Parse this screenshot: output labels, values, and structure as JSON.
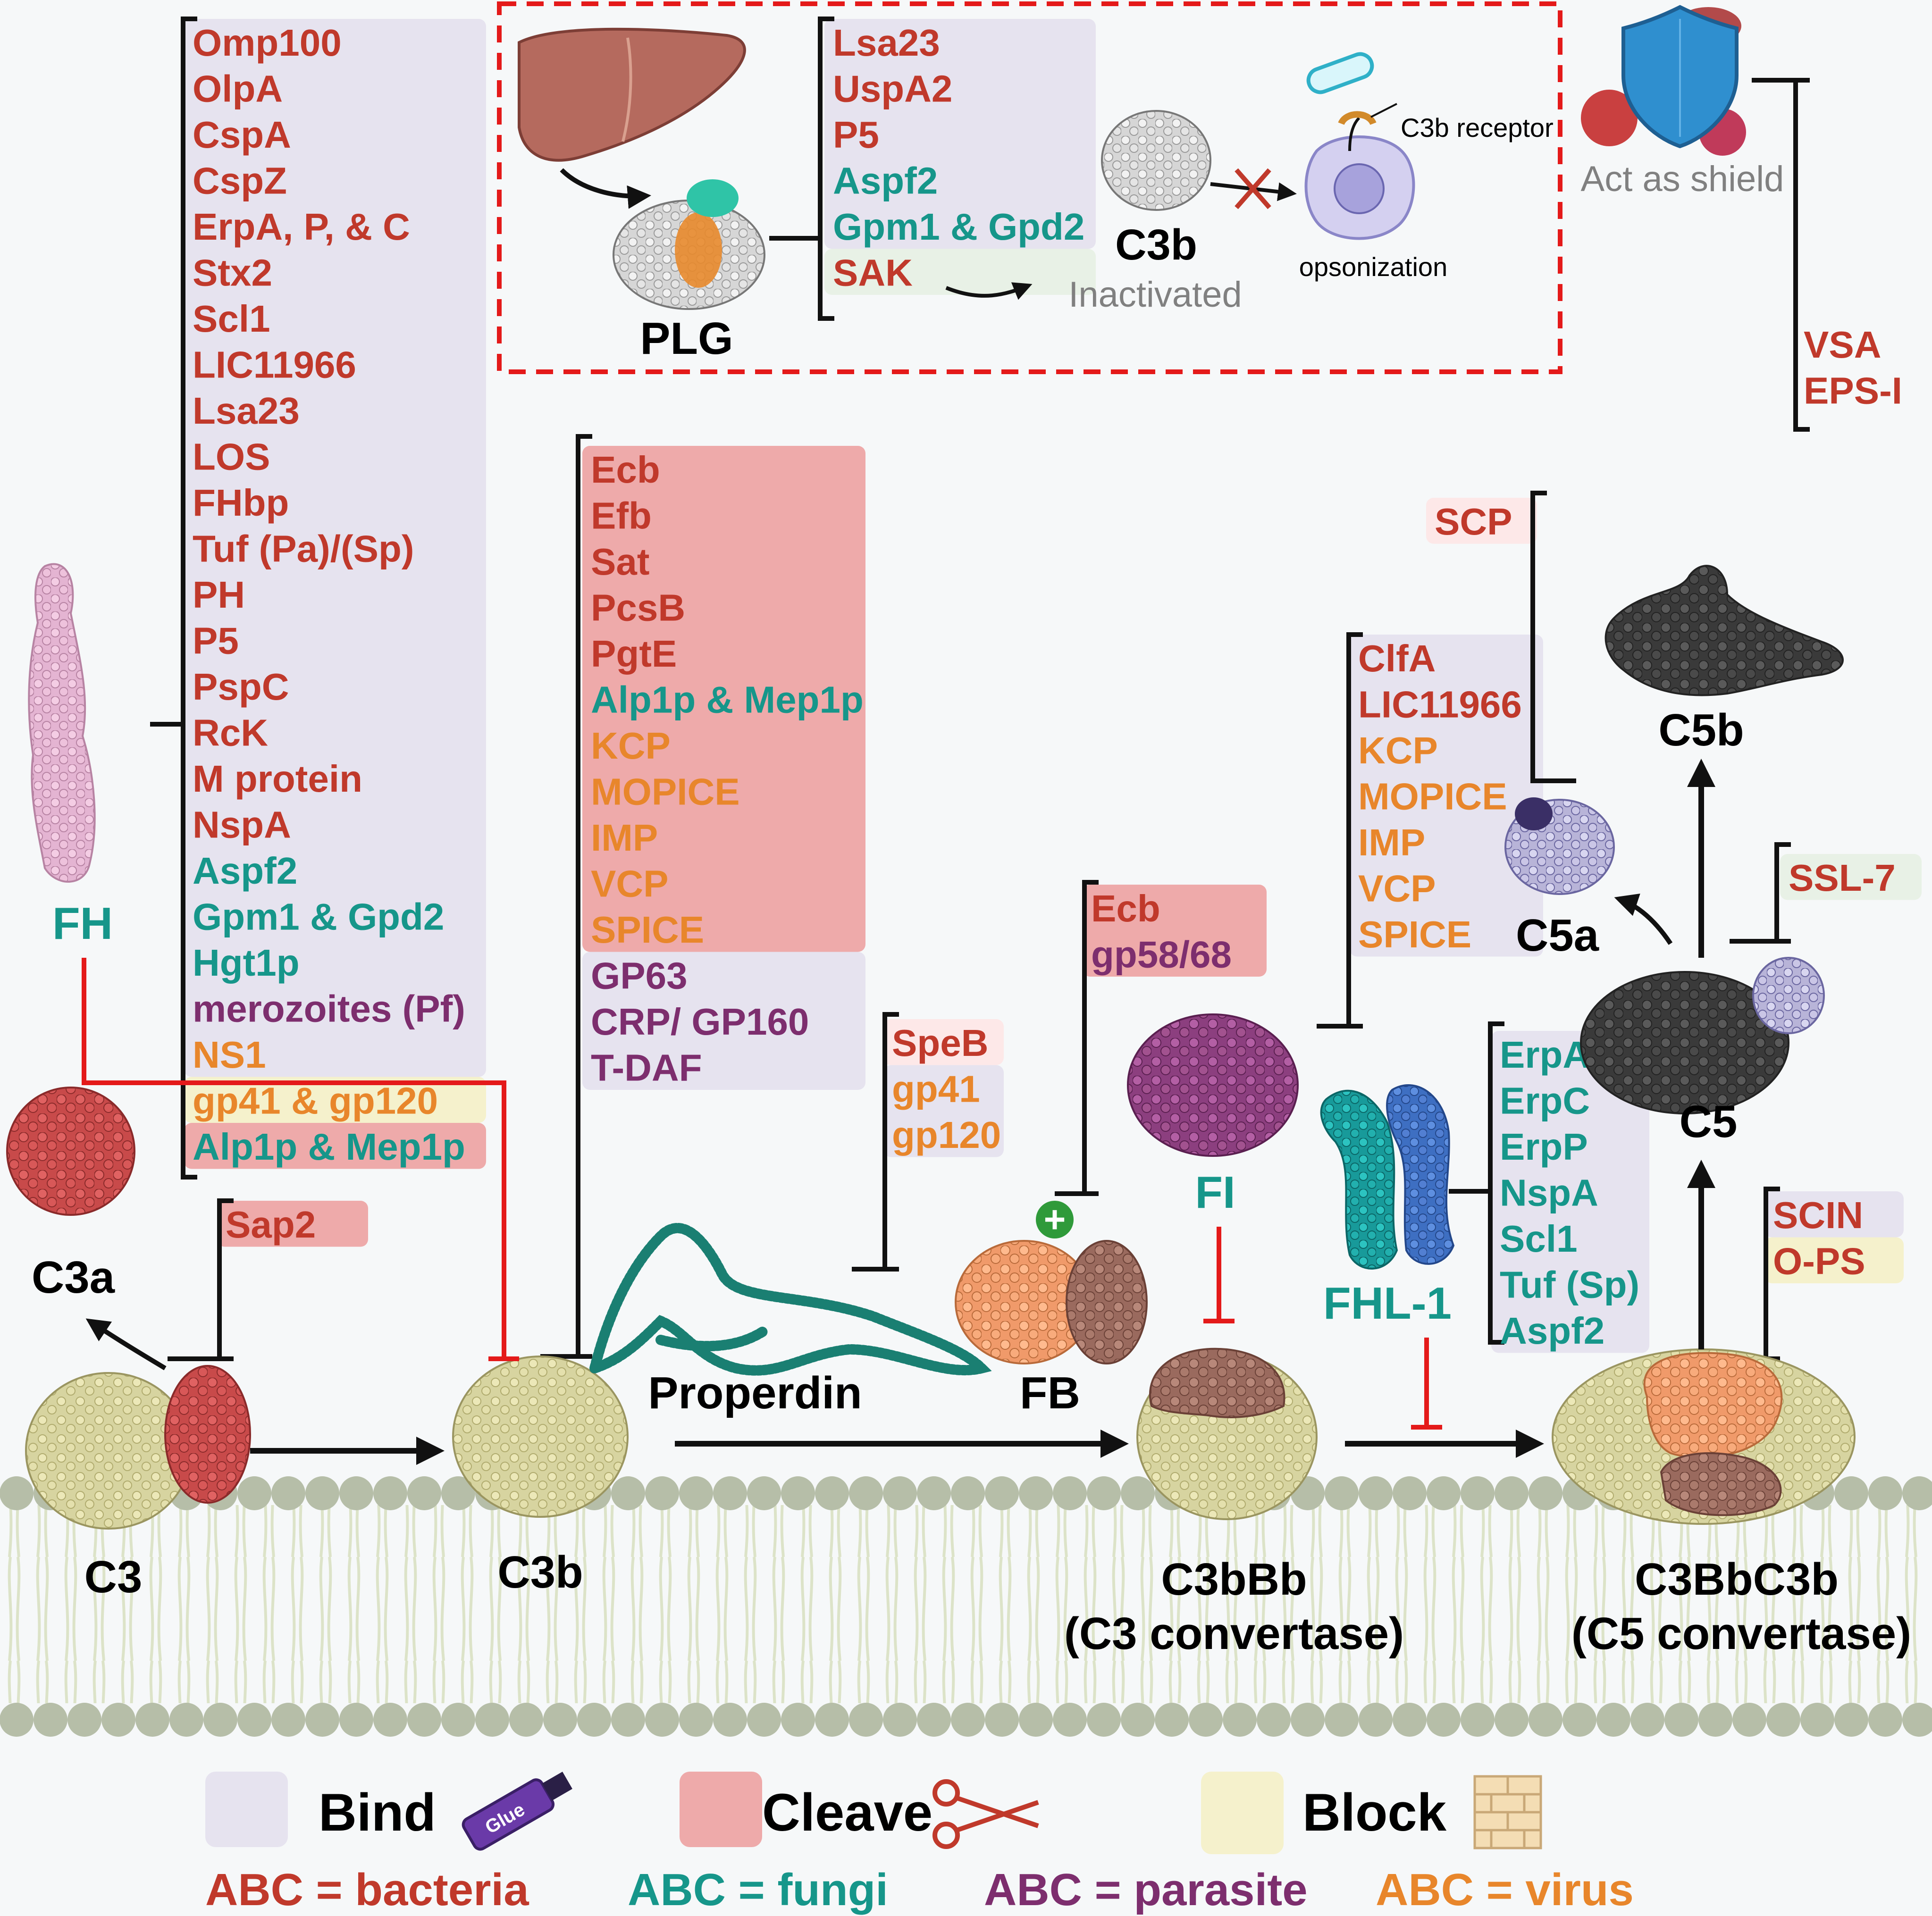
{
  "colors": {
    "bacteria": "#c0392b",
    "fungi": "#16968a",
    "parasite": "#7d2e6e",
    "virus": "#e8862b",
    "bind_box": "#e6e3ef",
    "cleave_box": "#eeaaaa",
    "block_box": "#f5f1cc",
    "inhibit": "#e41a1a",
    "membrane_head": "#b6bea8"
  },
  "molecules": {
    "fh": "FH",
    "c3a": "C3a",
    "c3": "C3",
    "c3b": "C3b",
    "plg": "PLG",
    "c3b_top": "C3b",
    "properdin": "Properdin",
    "fb": "FB",
    "fi": "FI",
    "fhl1": "FHL-1",
    "c5a": "C5a",
    "c5b": "C5b",
    "c5": "C5",
    "c3bbb": "C3bBb",
    "c3bbb_sub": "(C3 convertase)",
    "c3bbbc3b": "C3BbC3b",
    "c3bbbc3b_sub": "(C5 convertase)"
  },
  "annotations": {
    "inactivated": "Inactivated",
    "c3b_receptor": "C3b receptor",
    "opsonization": "opsonization",
    "act_as_shield": "Act as shield",
    "plus": "+",
    "glue": "Glue"
  },
  "fh_list": [
    {
      "t": "Omp100",
      "g": "bacteria"
    },
    {
      "t": "OlpA",
      "g": "bacteria"
    },
    {
      "t": "CspA",
      "g": "bacteria"
    },
    {
      "t": "CspZ",
      "g": "bacteria"
    },
    {
      "t": "ErpA, P, & C",
      "g": "bacteria"
    },
    {
      "t": "Stx2",
      "g": "bacteria"
    },
    {
      "t": "Scl1",
      "g": "bacteria"
    },
    {
      "t": "LIC11966",
      "g": "bacteria"
    },
    {
      "t": "Lsa23",
      "g": "bacteria"
    },
    {
      "t": "LOS",
      "g": "bacteria"
    },
    {
      "t": "FHbp",
      "g": "bacteria"
    },
    {
      "t": "Tuf (Pa)/(Sp)",
      "g": "bacteria"
    },
    {
      "t": "PH",
      "g": "bacteria"
    },
    {
      "t": "P5",
      "g": "bacteria"
    },
    {
      "t": "PspC",
      "g": "bacteria"
    },
    {
      "t": "RcK",
      "g": "bacteria"
    },
    {
      "t": "M protein",
      "g": "bacteria"
    },
    {
      "t": "NspA",
      "g": "bacteria"
    },
    {
      "t": "Aspf2",
      "g": "fungi"
    },
    {
      "t": "Gpm1 & Gpd2",
      "g": "fungi"
    },
    {
      "t": "Hgt1p",
      "g": "fungi"
    },
    {
      "t": "merozoites (Pf)",
      "g": "parasite"
    },
    {
      "t": "NS1",
      "g": "virus"
    },
    {
      "t": "gp41 & gp120",
      "g": "virus"
    },
    {
      "t": "Alp1p & Mep1p",
      "g": "fungi"
    }
  ],
  "sap_list": [
    {
      "t": "Sap2",
      "g": "bacteria"
    }
  ],
  "plg_list": [
    {
      "t": "Lsa23",
      "g": "bacteria"
    },
    {
      "t": "UspA2",
      "g": "bacteria"
    },
    {
      "t": "P5",
      "g": "bacteria"
    },
    {
      "t": "Aspf2",
      "g": "fungi"
    },
    {
      "t": "Gpm1 & Gpd2",
      "g": "fungi"
    },
    {
      "t": "SAK",
      "g": "bacteria"
    }
  ],
  "shield_list": [
    {
      "t": "VSA",
      "g": "bacteria"
    },
    {
      "t": "EPS-I",
      "g": "bacteria"
    }
  ],
  "c3b_list": [
    {
      "t": "Ecb",
      "g": "bacteria"
    },
    {
      "t": "Efb",
      "g": "bacteria"
    },
    {
      "t": "Sat",
      "g": "bacteria"
    },
    {
      "t": "PcsB",
      "g": "bacteria"
    },
    {
      "t": "PgtE",
      "g": "bacteria"
    },
    {
      "t": "Alp1p & Mep1p",
      "g": "fungi"
    },
    {
      "t": "KCP",
      "g": "virus"
    },
    {
      "t": "MOPICE",
      "g": "virus"
    },
    {
      "t": "IMP",
      "g": "virus"
    },
    {
      "t": "VCP",
      "g": "virus"
    },
    {
      "t": "SPICE",
      "g": "virus"
    },
    {
      "t": "GP63",
      "g": "parasite"
    },
    {
      "t": "CRP/ GP160",
      "g": "parasite"
    },
    {
      "t": "T-DAF",
      "g": "parasite"
    }
  ],
  "properdin_list": [
    {
      "t": "SpeB",
      "g": "bacteria"
    },
    {
      "t": "gp41",
      "g": "virus"
    },
    {
      "t": "gp120",
      "g": "virus"
    }
  ],
  "fb_list": [
    {
      "t": "Ecb",
      "g": "bacteria"
    },
    {
      "t": "gp58/68",
      "g": "parasite"
    }
  ],
  "fi_list": [
    {
      "t": "ClfA",
      "g": "bacteria"
    },
    {
      "t": "LIC11966",
      "g": "bacteria"
    },
    {
      "t": "KCP",
      "g": "virus"
    },
    {
      "t": "MOPICE",
      "g": "virus"
    },
    {
      "t": "IMP",
      "g": "virus"
    },
    {
      "t": "VCP",
      "g": "virus"
    },
    {
      "t": "SPICE",
      "g": "virus"
    }
  ],
  "scp_list": [
    {
      "t": "SCP",
      "g": "bacteria"
    }
  ],
  "ssl_list": [
    {
      "t": "SSL-7",
      "g": "bacteria"
    }
  ],
  "fhl_list": [
    {
      "t": "ErpA",
      "g": "fungi"
    },
    {
      "t": "ErpC",
      "g": "fungi"
    },
    {
      "t": "ErpP",
      "g": "fungi"
    },
    {
      "t": "NspA",
      "g": "fungi"
    },
    {
      "t": "Scl1",
      "g": "fungi"
    },
    {
      "t": "Tuf (Sp)",
      "g": "fungi"
    },
    {
      "t": "Aspf2",
      "g": "fungi"
    }
  ],
  "c5conv_list": [
    {
      "t": "SCIN",
      "g": "bacteria"
    },
    {
      "t": "O-PS",
      "g": "bacteria"
    }
  ],
  "legend": {
    "bind": "Bind",
    "cleave": "Cleave",
    "block": "Block",
    "bacteria": "ABC = bacteria",
    "fungi": "ABC = fungi",
    "parasite": "ABC = parasite",
    "virus": "ABC = virus"
  }
}
